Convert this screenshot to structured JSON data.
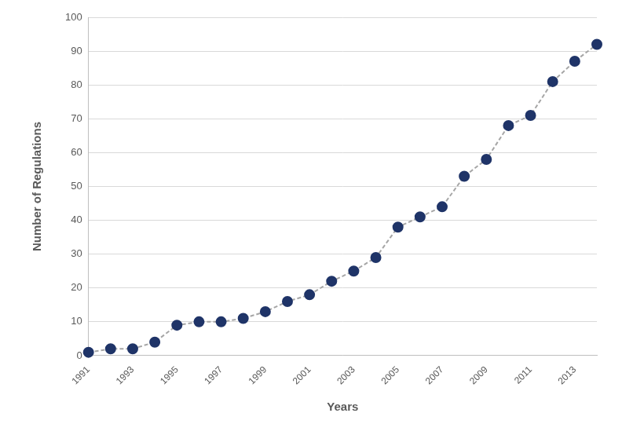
{
  "chart_data": {
    "type": "line",
    "x_label": "Years",
    "y_label": "Number of Regulations",
    "categories": [
      "1991",
      null,
      "1993",
      null,
      "1995",
      null,
      "1997",
      null,
      "1999",
      null,
      "2001",
      null,
      "2003",
      null,
      "2005",
      null,
      "2007",
      null,
      "2009",
      null,
      "2011",
      null,
      "2013",
      null
    ],
    "values": [
      1,
      2,
      2,
      4,
      9,
      10,
      10,
      11,
      13,
      16,
      18,
      22,
      25,
      29,
      38,
      41,
      44,
      53,
      58,
      68,
      71,
      81,
      87,
      92
    ],
    "color": "#1f3468",
    "marker": "circle",
    "line_style": "dashed",
    "ylim": [
      0,
      100
    ],
    "yticks": [
      0,
      10,
      20,
      30,
      40,
      50,
      60,
      70,
      80,
      90,
      100
    ],
    "grid": true
  }
}
